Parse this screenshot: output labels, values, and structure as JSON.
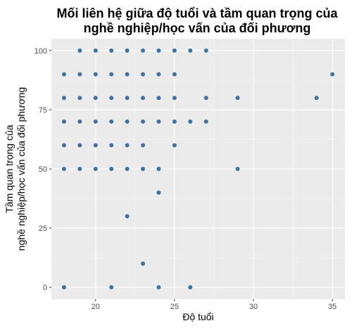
{
  "chart_data": {
    "type": "scatter",
    "title_lines": [
      "Mối liên hệ giữa độ tuổi và tầm quan trọng của",
      "nghề nghiệp/học vấn của đối phương"
    ],
    "xlabel": "Độ tuổi",
    "ylabel_lines": [
      "Tầm quan trọng của",
      "nghề nghiệp/học vấn của đối phương"
    ],
    "xlim": [
      17.2,
      35.8
    ],
    "ylim": [
      -5,
      105
    ],
    "x_ticks": [
      20,
      25,
      30,
      35
    ],
    "y_ticks": [
      0,
      25,
      50,
      75,
      100
    ],
    "grid": true,
    "point_color": "#41729c",
    "panel_color": "#ebebeb",
    "points": [
      {
        "x": 18,
        "y": 90
      },
      {
        "x": 18,
        "y": 80
      },
      {
        "x": 18,
        "y": 70
      },
      {
        "x": 18,
        "y": 60
      },
      {
        "x": 18,
        "y": 50
      },
      {
        "x": 18,
        "y": 0
      },
      {
        "x": 19,
        "y": 100
      },
      {
        "x": 19,
        "y": 90
      },
      {
        "x": 19,
        "y": 80
      },
      {
        "x": 19,
        "y": 70
      },
      {
        "x": 19,
        "y": 60
      },
      {
        "x": 19,
        "y": 50
      },
      {
        "x": 20,
        "y": 100
      },
      {
        "x": 20,
        "y": 90
      },
      {
        "x": 20,
        "y": 80
      },
      {
        "x": 20,
        "y": 70
      },
      {
        "x": 20,
        "y": 60
      },
      {
        "x": 20,
        "y": 50
      },
      {
        "x": 21,
        "y": 100
      },
      {
        "x": 21,
        "y": 90
      },
      {
        "x": 21,
        "y": 80
      },
      {
        "x": 21,
        "y": 70
      },
      {
        "x": 21,
        "y": 60
      },
      {
        "x": 21,
        "y": 50
      },
      {
        "x": 21,
        "y": 0
      },
      {
        "x": 22,
        "y": 100
      },
      {
        "x": 22,
        "y": 90
      },
      {
        "x": 22,
        "y": 80
      },
      {
        "x": 22,
        "y": 70
      },
      {
        "x": 22,
        "y": 60
      },
      {
        "x": 22,
        "y": 50
      },
      {
        "x": 22,
        "y": 30
      },
      {
        "x": 23,
        "y": 100
      },
      {
        "x": 23,
        "y": 90
      },
      {
        "x": 23,
        "y": 80
      },
      {
        "x": 23,
        "y": 70
      },
      {
        "x": 23,
        "y": 60
      },
      {
        "x": 23,
        "y": 50
      },
      {
        "x": 23,
        "y": 10
      },
      {
        "x": 24,
        "y": 100
      },
      {
        "x": 24,
        "y": 90
      },
      {
        "x": 24,
        "y": 80
      },
      {
        "x": 24,
        "y": 70
      },
      {
        "x": 24,
        "y": 50
      },
      {
        "x": 24,
        "y": 40
      },
      {
        "x": 24,
        "y": 0
      },
      {
        "x": 25,
        "y": 100
      },
      {
        "x": 25,
        "y": 90
      },
      {
        "x": 25,
        "y": 80
      },
      {
        "x": 25,
        "y": 70
      },
      {
        "x": 25,
        "y": 60
      },
      {
        "x": 26,
        "y": 100
      },
      {
        "x": 26,
        "y": 70
      },
      {
        "x": 26,
        "y": 0
      },
      {
        "x": 27,
        "y": 100
      },
      {
        "x": 27,
        "y": 80
      },
      {
        "x": 27,
        "y": 70
      },
      {
        "x": 29,
        "y": 80
      },
      {
        "x": 29,
        "y": 50
      },
      {
        "x": 34,
        "y": 80
      },
      {
        "x": 35,
        "y": 90
      }
    ]
  }
}
